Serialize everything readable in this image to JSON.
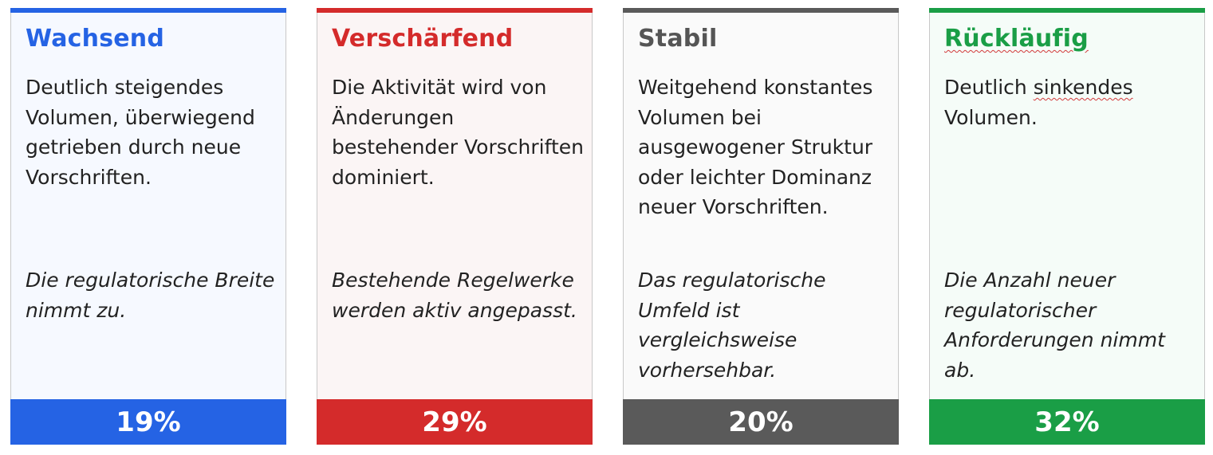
{
  "cards": [
    {
      "title": "Wachsend",
      "description": "Deutlich steigendes Volumen, überwiegend getrieben durch neue Vorschriften.",
      "note": "Die regulatorische Breite nimmt zu.",
      "percent": "19%",
      "accent": "#2563e4",
      "background": "#f6f9ff"
    },
    {
      "title": "Verschärfend",
      "description": "Die Aktivität wird von Änderungen bestehender Vorschriften dominiert.",
      "note": "Bestehende Regelwerke werden aktiv angepasst.",
      "percent": "29%",
      "accent": "#d42b2b",
      "background": "#fbf5f5"
    },
    {
      "title": "Stabil",
      "description": "Weitgehend konstantes Volumen bei ausgewogener Struktur oder leichter Dominanz neuer Vorschriften.",
      "note": "Das regulatorische Umfeld ist vergleichsweise vorhersehbar.",
      "percent": "20%",
      "accent": "#5a5a5a",
      "title_color": "#555555",
      "background": "#fafafa"
    },
    {
      "title": "Rückläufig",
      "description_parts": [
        "Deutlich ",
        "sinkendes",
        " Volumen."
      ],
      "note": "Die Anzahl neuer regulatorischer Anforderungen nimmt ab.",
      "percent": "32%",
      "accent": "#1a9e46",
      "background": "#f5fcf8"
    }
  ]
}
